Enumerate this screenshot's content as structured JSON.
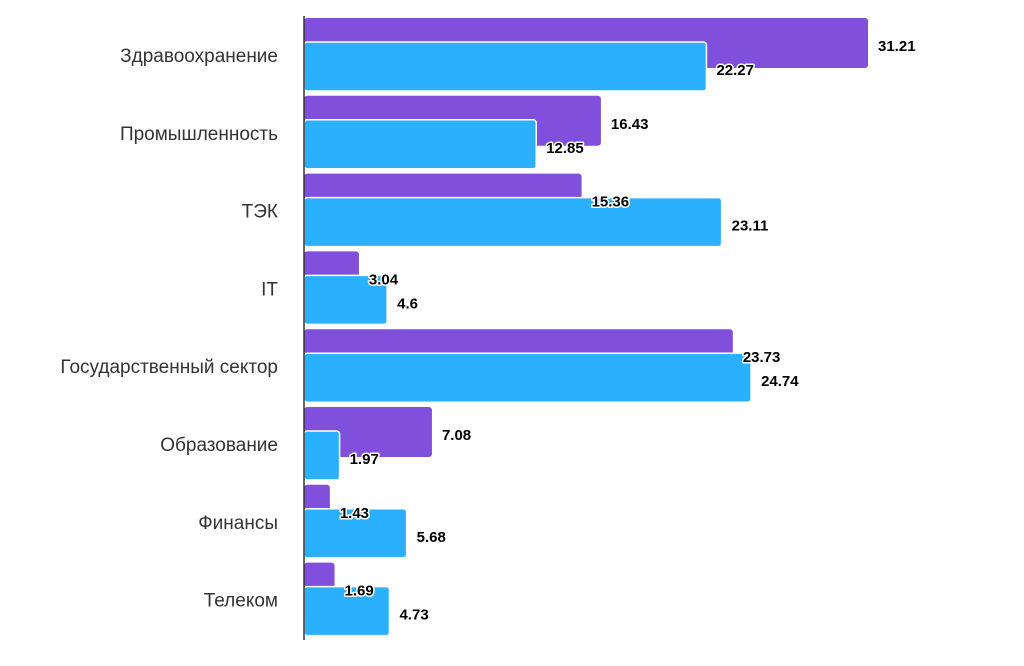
{
  "chart_data": {
    "type": "bar",
    "orientation": "horizontal",
    "categories": [
      "Здравоохранение",
      "Промышленность",
      "ТЭК",
      "IT",
      "Государственный сектор",
      "Образование",
      "Финансы",
      "Телеком"
    ],
    "series": [
      {
        "values": [
          31.21,
          16.43,
          15.36,
          3.04,
          23.73,
          7.08,
          1.43,
          1.69
        ],
        "color": "#804fdb"
      },
      {
        "values": [
          22.27,
          12.85,
          23.11,
          4.6,
          24.74,
          1.97,
          5.68,
          4.73
        ],
        "color": "#2bb0ff"
      }
    ],
    "xlim": [
      0,
      31.21
    ],
    "grid": false,
    "legend": "none",
    "data_labels": true
  }
}
